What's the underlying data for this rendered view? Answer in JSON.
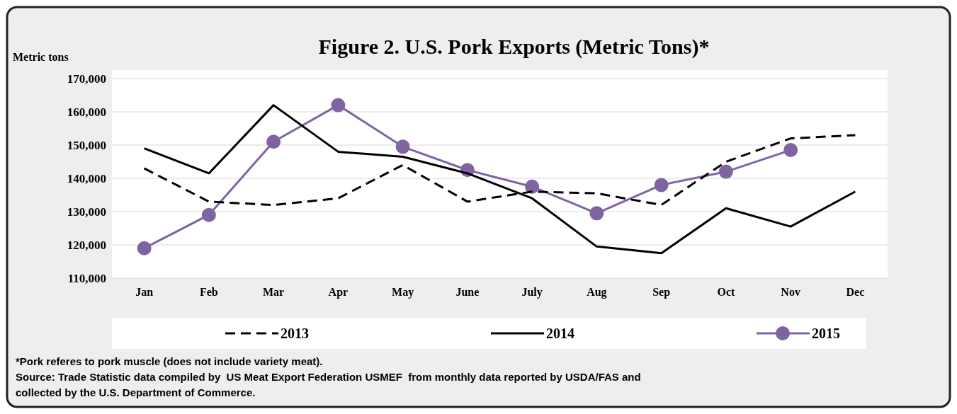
{
  "chart_data": {
    "type": "line",
    "title": "Figure 2. U.S. Pork Exports (Metric Tons)*",
    "ylabel": "Metric tons",
    "categories": [
      "Jan",
      "Feb",
      "Mar",
      "Apr",
      "May",
      "June",
      "July",
      "Aug",
      "Sep",
      "Oct",
      "Nov",
      "Dec"
    ],
    "series": [
      {
        "name": "2013",
        "color": "#000000",
        "line_style": "dashed",
        "marker": "none",
        "values": [
          143000,
          133000,
          132000,
          134000,
          144000,
          133000,
          136000,
          135500,
          132000,
          145000,
          152000,
          153000
        ]
      },
      {
        "name": "2014",
        "color": "#000000",
        "line_style": "solid",
        "marker": "none",
        "values": [
          149000,
          141500,
          162000,
          148000,
          146500,
          141500,
          134000,
          119500,
          117500,
          131000,
          125500,
          136000
        ]
      },
      {
        "name": "2015",
        "color": "#8064a2",
        "line_style": "solid",
        "marker": "circle",
        "values": [
          119000,
          129000,
          151000,
          162000,
          149500,
          142500,
          137500,
          129500,
          138000,
          142000,
          148500,
          null
        ]
      }
    ],
    "ylim": [
      110000,
      170000
    ],
    "yticks": [
      {
        "value": 110000,
        "label": "110,000"
      },
      {
        "value": 120000,
        "label": "120,000"
      },
      {
        "value": 130000,
        "label": "130,000"
      },
      {
        "value": 140000,
        "label": "140,000"
      },
      {
        "value": 150000,
        "label": "150,000"
      },
      {
        "value": 160000,
        "label": "160,000"
      },
      {
        "value": 170000,
        "label": "170,000"
      }
    ],
    "grid": "y",
    "legend": "bottom",
    "annotations": [
      "*Pork referes to pork muscle (does not include variety meat).",
      "Source: Trade Statistic data compiled by  US Meat Export Federation USMEF  from monthly data reported by USDA/FAS and",
      "collected by the U.S. Department of Commerce."
    ]
  }
}
